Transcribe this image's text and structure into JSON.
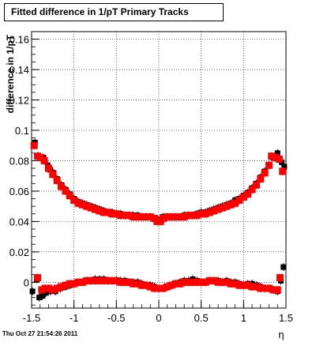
{
  "chart_data": {
    "type": "scatter",
    "title": "Fitted difference in 1/pT  Primary Tracks",
    "xlabel": "η",
    "ylabel": "difference in 1/pT",
    "xlim": [
      -1.5,
      1.5
    ],
    "ylim": [
      -0.017,
      0.165
    ],
    "xticks": [
      "-1.5",
      "-1",
      "-0.5",
      "0",
      "0.5",
      "1",
      "1.5"
    ],
    "yticks": [
      "0",
      "0.02",
      "0.04",
      "0.06",
      "0.08",
      "0.1",
      "0.12",
      "0.14",
      "0.16"
    ],
    "grid": true,
    "series": [
      {
        "color": "#000000",
        "marker": "square",
        "points": [
          [
            -1.46,
            0.092
          ],
          [
            -1.42,
            0.083
          ],
          [
            -1.36,
            0.082
          ],
          [
            -1.31,
            0.077
          ],
          [
            -1.28,
            0.074
          ],
          [
            -1.24,
            0.072
          ],
          [
            -1.2,
            0.068
          ],
          [
            -1.15,
            0.064
          ],
          [
            -1.1,
            0.061
          ],
          [
            -1.05,
            0.058
          ],
          [
            -1.0,
            0.055
          ],
          [
            -0.95,
            0.053
          ],
          [
            -0.9,
            0.052
          ],
          [
            -0.85,
            0.051
          ],
          [
            -0.8,
            0.05
          ],
          [
            -0.75,
            0.049
          ],
          [
            -0.7,
            0.048
          ],
          [
            -0.65,
            0.047
          ],
          [
            -0.6,
            0.046
          ],
          [
            -0.55,
            0.046
          ],
          [
            -0.5,
            0.045
          ],
          [
            -0.45,
            0.045
          ],
          [
            -0.4,
            0.044
          ],
          [
            -0.35,
            0.044
          ],
          [
            -0.3,
            0.044
          ],
          [
            -0.25,
            0.044
          ],
          [
            -0.2,
            0.043
          ],
          [
            -0.15,
            0.043
          ],
          [
            -0.1,
            0.043
          ],
          [
            -0.05,
            0.042
          ],
          [
            0.0,
            0.041
          ],
          [
            0.05,
            0.043
          ],
          [
            0.1,
            0.043
          ],
          [
            0.15,
            0.043
          ],
          [
            0.2,
            0.043
          ],
          [
            0.25,
            0.043
          ],
          [
            0.3,
            0.044
          ],
          [
            0.35,
            0.044
          ],
          [
            0.4,
            0.044
          ],
          [
            0.45,
            0.045
          ],
          [
            0.5,
            0.046
          ],
          [
            0.55,
            0.046
          ],
          [
            0.6,
            0.047
          ],
          [
            0.65,
            0.048
          ],
          [
            0.7,
            0.049
          ],
          [
            0.75,
            0.05
          ],
          [
            0.8,
            0.051
          ],
          [
            0.85,
            0.052
          ],
          [
            0.9,
            0.054
          ],
          [
            0.95,
            0.055
          ],
          [
            1.0,
            0.057
          ],
          [
            1.05,
            0.059
          ],
          [
            1.1,
            0.062
          ],
          [
            1.15,
            0.065
          ],
          [
            1.2,
            0.069
          ],
          [
            1.25,
            0.073
          ],
          [
            1.3,
            0.077
          ],
          [
            1.35,
            0.082
          ],
          [
            1.4,
            0.085
          ],
          [
            1.45,
            0.079
          ],
          [
            1.48,
            0.076
          ],
          [
            -1.49,
            -0.006
          ],
          [
            -1.44,
            0.002
          ],
          [
            -1.41,
            -0.01
          ],
          [
            -1.37,
            -0.009
          ],
          [
            -1.33,
            -0.007
          ],
          [
            -1.28,
            -0.006
          ],
          [
            -1.22,
            -0.006
          ],
          [
            -1.16,
            -0.004
          ],
          [
            -1.1,
            -0.003
          ],
          [
            -1.05,
            -0.002
          ],
          [
            -1.0,
            -0.001
          ],
          [
            -0.95,
            0.0
          ],
          [
            -0.9,
            0.0
          ],
          [
            -0.85,
            0.001
          ],
          [
            -0.8,
            0.001
          ],
          [
            -0.75,
            0.002
          ],
          [
            -0.7,
            0.002
          ],
          [
            -0.65,
            0.002
          ],
          [
            -0.6,
            0.001
          ],
          [
            -0.55,
            0.001
          ],
          [
            -0.5,
            0.001
          ],
          [
            -0.45,
            0.001
          ],
          [
            -0.4,
            0.001
          ],
          [
            -0.35,
            0.0
          ],
          [
            -0.3,
            0.0
          ],
          [
            -0.25,
            0.0
          ],
          [
            -0.2,
            -0.001
          ],
          [
            -0.15,
            -0.002
          ],
          [
            -0.1,
            -0.002
          ],
          [
            -0.05,
            -0.003
          ],
          [
            0.0,
            -0.004
          ],
          [
            0.05,
            -0.004
          ],
          [
            0.1,
            -0.003
          ],
          [
            0.15,
            -0.002
          ],
          [
            0.2,
            -0.001
          ],
          [
            0.25,
            0.0
          ],
          [
            0.3,
            0.001
          ],
          [
            0.35,
            0.001
          ],
          [
            0.4,
            0.002
          ],
          [
            0.45,
            0.001
          ],
          [
            0.5,
            0.0
          ],
          [
            0.55,
            0.0
          ],
          [
            0.6,
            0.001
          ],
          [
            0.65,
            0.001
          ],
          [
            0.7,
            0.001
          ],
          [
            0.75,
            0.0
          ],
          [
            0.8,
            0.001
          ],
          [
            0.85,
            0.0
          ],
          [
            0.9,
            0.0
          ],
          [
            0.95,
            -0.001
          ],
          [
            1.0,
            -0.002
          ],
          [
            1.05,
            -0.001
          ],
          [
            1.1,
            -0.001
          ],
          [
            1.15,
            -0.002
          ],
          [
            1.2,
            -0.003
          ],
          [
            1.25,
            -0.004
          ],
          [
            1.3,
            -0.004
          ],
          [
            1.35,
            -0.005
          ],
          [
            1.4,
            -0.006
          ],
          [
            1.44,
            0.001
          ],
          [
            1.47,
            0.01
          ]
        ]
      },
      {
        "color": "#ff0000",
        "marker": "square",
        "points": [
          [
            -1.47,
            0.09
          ],
          [
            -1.43,
            0.083
          ],
          [
            -1.39,
            0.082
          ],
          [
            -1.35,
            0.08
          ],
          [
            -1.3,
            0.075
          ],
          [
            -1.25,
            0.071
          ],
          [
            -1.2,
            0.067
          ],
          [
            -1.15,
            0.063
          ],
          [
            -1.1,
            0.06
          ],
          [
            -1.05,
            0.057
          ],
          [
            -1.0,
            0.054
          ],
          [
            -0.95,
            0.052
          ],
          [
            -0.9,
            0.051
          ],
          [
            -0.85,
            0.05
          ],
          [
            -0.8,
            0.049
          ],
          [
            -0.75,
            0.048
          ],
          [
            -0.7,
            0.047
          ],
          [
            -0.65,
            0.046
          ],
          [
            -0.6,
            0.046
          ],
          [
            -0.55,
            0.045
          ],
          [
            -0.5,
            0.045
          ],
          [
            -0.45,
            0.044
          ],
          [
            -0.4,
            0.044
          ],
          [
            -0.35,
            0.044
          ],
          [
            -0.3,
            0.043
          ],
          [
            -0.25,
            0.043
          ],
          [
            -0.2,
            0.043
          ],
          [
            -0.15,
            0.043
          ],
          [
            -0.1,
            0.043
          ],
          [
            -0.05,
            0.042
          ],
          [
            -0.02,
            0.04
          ],
          [
            0.02,
            0.04
          ],
          [
            0.05,
            0.042
          ],
          [
            0.1,
            0.043
          ],
          [
            0.15,
            0.043
          ],
          [
            0.2,
            0.043
          ],
          [
            0.25,
            0.043
          ],
          [
            0.3,
            0.043
          ],
          [
            0.35,
            0.044
          ],
          [
            0.4,
            0.044
          ],
          [
            0.45,
            0.044
          ],
          [
            0.5,
            0.045
          ],
          [
            0.55,
            0.045
          ],
          [
            0.6,
            0.046
          ],
          [
            0.65,
            0.047
          ],
          [
            0.7,
            0.048
          ],
          [
            0.75,
            0.049
          ],
          [
            0.8,
            0.05
          ],
          [
            0.85,
            0.051
          ],
          [
            0.9,
            0.052
          ],
          [
            0.95,
            0.054
          ],
          [
            1.0,
            0.056
          ],
          [
            1.05,
            0.058
          ],
          [
            1.1,
            0.061
          ],
          [
            1.15,
            0.064
          ],
          [
            1.2,
            0.068
          ],
          [
            1.25,
            0.072
          ],
          [
            1.3,
            0.077
          ],
          [
            1.33,
            0.083
          ],
          [
            1.38,
            0.082
          ],
          [
            1.42,
            0.081
          ],
          [
            1.46,
            0.073
          ],
          [
            -1.43,
            0.003
          ],
          [
            -1.38,
            -0.005
          ],
          [
            -1.34,
            -0.004
          ],
          [
            -1.3,
            -0.004
          ],
          [
            -1.25,
            -0.005
          ],
          [
            -1.2,
            -0.004
          ],
          [
            -1.15,
            -0.003
          ],
          [
            -1.1,
            -0.002
          ],
          [
            -1.05,
            -0.001
          ],
          [
            -1.0,
            -0.001
          ],
          [
            -0.95,
            0.0
          ],
          [
            -0.9,
            0.0
          ],
          [
            -0.85,
            0.001
          ],
          [
            -0.8,
            0.001
          ],
          [
            -0.75,
            0.001
          ],
          [
            -0.7,
            0.001
          ],
          [
            -0.65,
            0.001
          ],
          [
            -0.6,
            0.001
          ],
          [
            -0.55,
            0.001
          ],
          [
            -0.5,
            0.001
          ],
          [
            -0.45,
            0.0
          ],
          [
            -0.4,
            0.0
          ],
          [
            -0.35,
            0.0
          ],
          [
            -0.3,
            -0.001
          ],
          [
            -0.25,
            -0.001
          ],
          [
            -0.2,
            -0.002
          ],
          [
            -0.15,
            -0.002
          ],
          [
            -0.1,
            -0.003
          ],
          [
            -0.05,
            -0.004
          ],
          [
            0.0,
            -0.004
          ],
          [
            0.05,
            -0.004
          ],
          [
            0.1,
            -0.003
          ],
          [
            0.15,
            -0.002
          ],
          [
            0.2,
            -0.001
          ],
          [
            0.25,
            -0.001
          ],
          [
            0.3,
            0.0
          ],
          [
            0.35,
            0.0
          ],
          [
            0.4,
            0.0
          ],
          [
            0.45,
            0.0
          ],
          [
            0.5,
            0.0
          ],
          [
            0.55,
            0.0
          ],
          [
            0.6,
            0.001
          ],
          [
            0.65,
            0.001
          ],
          [
            0.7,
            0.0
          ],
          [
            0.75,
            0.0
          ],
          [
            0.8,
            0.0
          ],
          [
            0.85,
            -0.001
          ],
          [
            0.9,
            -0.001
          ],
          [
            0.95,
            -0.002
          ],
          [
            1.0,
            -0.002
          ],
          [
            1.05,
            -0.002
          ],
          [
            1.1,
            -0.003
          ],
          [
            1.15,
            -0.003
          ],
          [
            1.2,
            -0.004
          ],
          [
            1.25,
            -0.004
          ],
          [
            1.3,
            -0.004
          ],
          [
            1.35,
            -0.005
          ],
          [
            1.4,
            -0.005
          ],
          [
            1.43,
            0.003
          ]
        ]
      }
    ]
  },
  "footer": {
    "datestamp": "Thu Oct 27 21:54:26 2011"
  }
}
